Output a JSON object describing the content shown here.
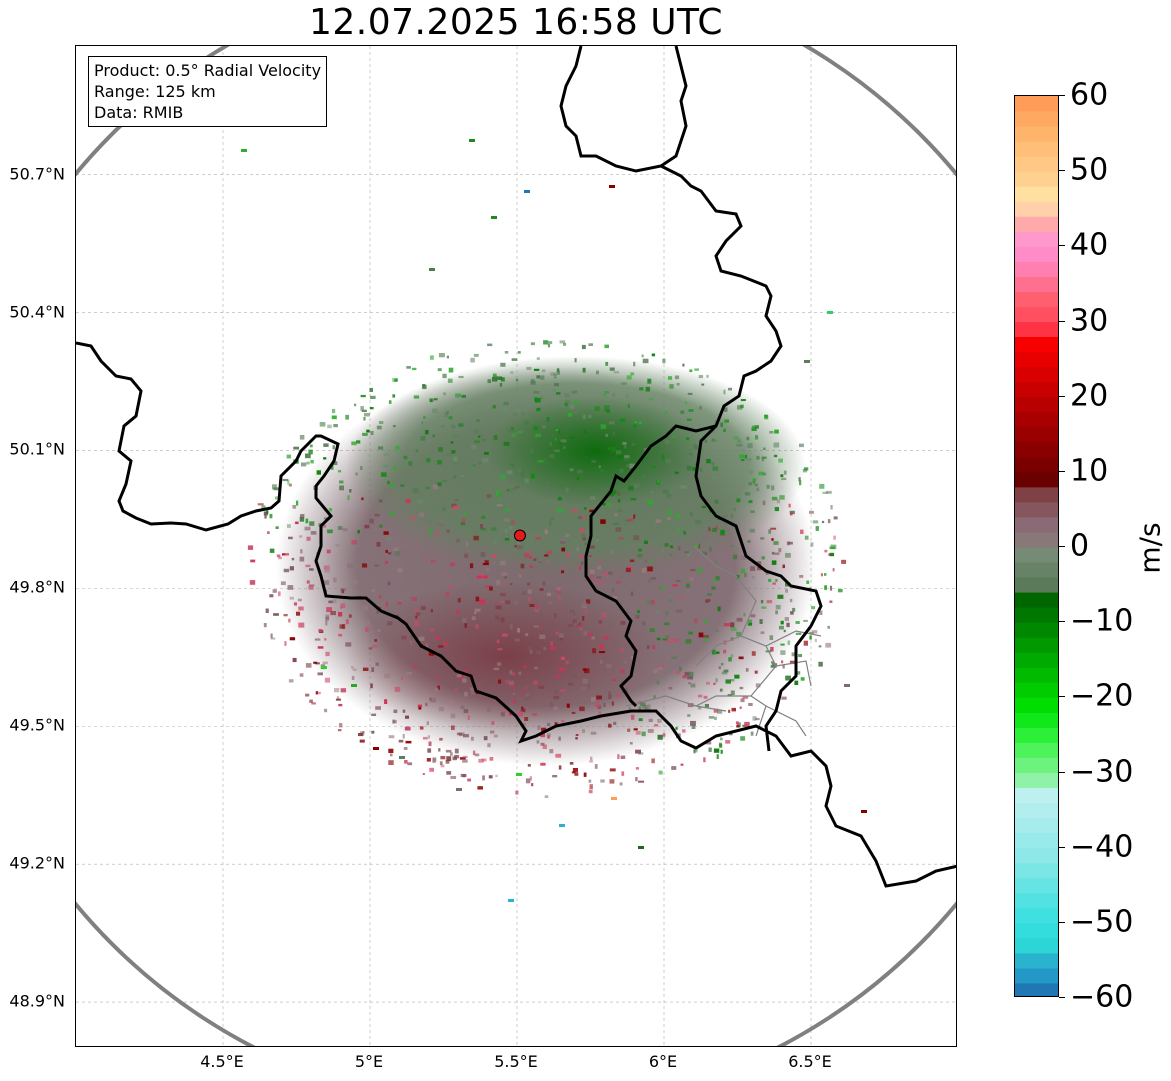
{
  "title": "12.07.2025 16:58 UTC",
  "info": {
    "product": "Product: 0.5° Radial Velocity",
    "range": "Range: 125 km",
    "source": "Data: RMIB"
  },
  "map": {
    "lon_range": [
      4.0,
      7.0
    ],
    "lat_range": [
      48.8,
      50.98
    ],
    "radar_site": {
      "lon": 5.51,
      "lat": 49.915
    },
    "radar_marker_color": "#e41a1c",
    "range_ring_color": "#808080",
    "border_color": "#000000",
    "admin_border_color": "#808080"
  },
  "axes": {
    "y_ticks": [
      {
        "value": 50.7,
        "label": "50.7°N"
      },
      {
        "value": 50.4,
        "label": "50.4°N"
      },
      {
        "value": 50.1,
        "label": "50.1°N"
      },
      {
        "value": 49.8,
        "label": "49.8°N"
      },
      {
        "value": 49.5,
        "label": "49.5°N"
      },
      {
        "value": 49.2,
        "label": "49.2°N"
      },
      {
        "value": 48.9,
        "label": "48.9°N"
      }
    ],
    "x_ticks": [
      {
        "value": 4.5,
        "label": "4.5°E"
      },
      {
        "value": 5.0,
        "label": "5°E"
      },
      {
        "value": 5.5,
        "label": "5.5°E"
      },
      {
        "value": 6.0,
        "label": "6°E"
      },
      {
        "value": 6.5,
        "label": "6.5°E"
      }
    ]
  },
  "colorbar": {
    "label": "m/s",
    "min": -60,
    "max": 60,
    "ticks": [
      {
        "value": 60,
        "label": "60"
      },
      {
        "value": 50,
        "label": "50"
      },
      {
        "value": 40,
        "label": "40"
      },
      {
        "value": 30,
        "label": "30"
      },
      {
        "value": 20,
        "label": "20"
      },
      {
        "value": 10,
        "label": "10"
      },
      {
        "value": 0,
        "label": "0"
      },
      {
        "value": -10,
        "label": "−10"
      },
      {
        "value": -20,
        "label": "−20"
      },
      {
        "value": -30,
        "label": "−30"
      },
      {
        "value": -40,
        "label": "−40"
      },
      {
        "value": -50,
        "label": "−50"
      },
      {
        "value": -60,
        "label": "−60"
      }
    ],
    "bands": [
      {
        "from": -60,
        "to": -58,
        "color": "#1f77b4"
      },
      {
        "from": -58,
        "to": -56,
        "color": "#2499c7"
      },
      {
        "from": -56,
        "to": -54,
        "color": "#29b3cf"
      },
      {
        "from": -54,
        "to": -52,
        "color": "#2dd6d6"
      },
      {
        "from": -52,
        "to": -50,
        "color": "#33dddd"
      },
      {
        "from": -50,
        "to": -48,
        "color": "#3fe0e0"
      },
      {
        "from": -48,
        "to": -46,
        "color": "#52e2e2"
      },
      {
        "from": -46,
        "to": -44,
        "color": "#66e4e4"
      },
      {
        "from": -44,
        "to": -42,
        "color": "#7ae6e6"
      },
      {
        "from": -42,
        "to": -40,
        "color": "#8ee8e8"
      },
      {
        "from": -40,
        "to": -38,
        "color": "#99eaea"
      },
      {
        "from": -38,
        "to": -36,
        "color": "#a6ecec"
      },
      {
        "from": -36,
        "to": -34,
        "color": "#b3eeee"
      },
      {
        "from": -34,
        "to": -32,
        "color": "#bff0f0"
      },
      {
        "from": -32,
        "to": -30,
        "color": "#90f2a8"
      },
      {
        "from": -30,
        "to": -28,
        "color": "#6ef27f"
      },
      {
        "from": -28,
        "to": -26,
        "color": "#4ef25a"
      },
      {
        "from": -26,
        "to": -24,
        "color": "#2cf038"
      },
      {
        "from": -24,
        "to": -22,
        "color": "#10e81a"
      },
      {
        "from": -22,
        "to": -20,
        "color": "#00dd00"
      },
      {
        "from": -20,
        "to": -18,
        "color": "#00cc00"
      },
      {
        "from": -18,
        "to": -16,
        "color": "#00bb00"
      },
      {
        "from": -16,
        "to": -14,
        "color": "#00aa00"
      },
      {
        "from": -14,
        "to": -12,
        "color": "#009900"
      },
      {
        "from": -12,
        "to": -10,
        "color": "#008800"
      },
      {
        "from": -10,
        "to": -8,
        "color": "#007700"
      },
      {
        "from": -8,
        "to": -6,
        "color": "#006600"
      },
      {
        "from": -6,
        "to": -4,
        "color": "#5a7a5a"
      },
      {
        "from": -4,
        "to": -2,
        "color": "#688268"
      },
      {
        "from": -2,
        "to": 0,
        "color": "#768a76"
      },
      {
        "from": 0,
        "to": 2,
        "color": "#887878"
      },
      {
        "from": 2,
        "to": 4,
        "color": "#8a6a74"
      },
      {
        "from": 4,
        "to": 6,
        "color": "#85565e"
      },
      {
        "from": 6,
        "to": 8,
        "color": "#7f4046"
      },
      {
        "from": 8,
        "to": 10,
        "color": "#6b0000"
      },
      {
        "from": 10,
        "to": 12,
        "color": "#7a0000"
      },
      {
        "from": 12,
        "to": 14,
        "color": "#8a0000"
      },
      {
        "from": 14,
        "to": 16,
        "color": "#990000"
      },
      {
        "from": 16,
        "to": 18,
        "color": "#a80000"
      },
      {
        "from": 18,
        "to": 20,
        "color": "#b80000"
      },
      {
        "from": 20,
        "to": 22,
        "color": "#c80000"
      },
      {
        "from": 22,
        "to": 24,
        "color": "#d80000"
      },
      {
        "from": 24,
        "to": 26,
        "color": "#e80000"
      },
      {
        "from": 26,
        "to": 28,
        "color": "#f70000"
      },
      {
        "from": 28,
        "to": 30,
        "color": "#ff3344"
      },
      {
        "from": 30,
        "to": 32,
        "color": "#ff4f60"
      },
      {
        "from": 32,
        "to": 34,
        "color": "#ff6070"
      },
      {
        "from": 34,
        "to": 36,
        "color": "#ff7090"
      },
      {
        "from": 36,
        "to": 38,
        "color": "#ff80b0"
      },
      {
        "from": 38,
        "to": 40,
        "color": "#ff8cc8"
      },
      {
        "from": 40,
        "to": 42,
        "color": "#ff99cc"
      },
      {
        "from": 42,
        "to": 44,
        "color": "#ffaaaa"
      },
      {
        "from": 44,
        "to": 46,
        "color": "#ffd0aa"
      },
      {
        "from": 46,
        "to": 48,
        "color": "#ffe0a0"
      },
      {
        "from": 48,
        "to": 50,
        "color": "#ffd190"
      },
      {
        "from": 50,
        "to": 52,
        "color": "#ffc884"
      },
      {
        "from": 52,
        "to": 54,
        "color": "#ffbf78"
      },
      {
        "from": 54,
        "to": 56,
        "color": "#ffb46c"
      },
      {
        "from": 56,
        "to": 58,
        "color": "#ffa862"
      },
      {
        "from": 58,
        "to": 60,
        "color": "#ff9c58"
      }
    ]
  }
}
